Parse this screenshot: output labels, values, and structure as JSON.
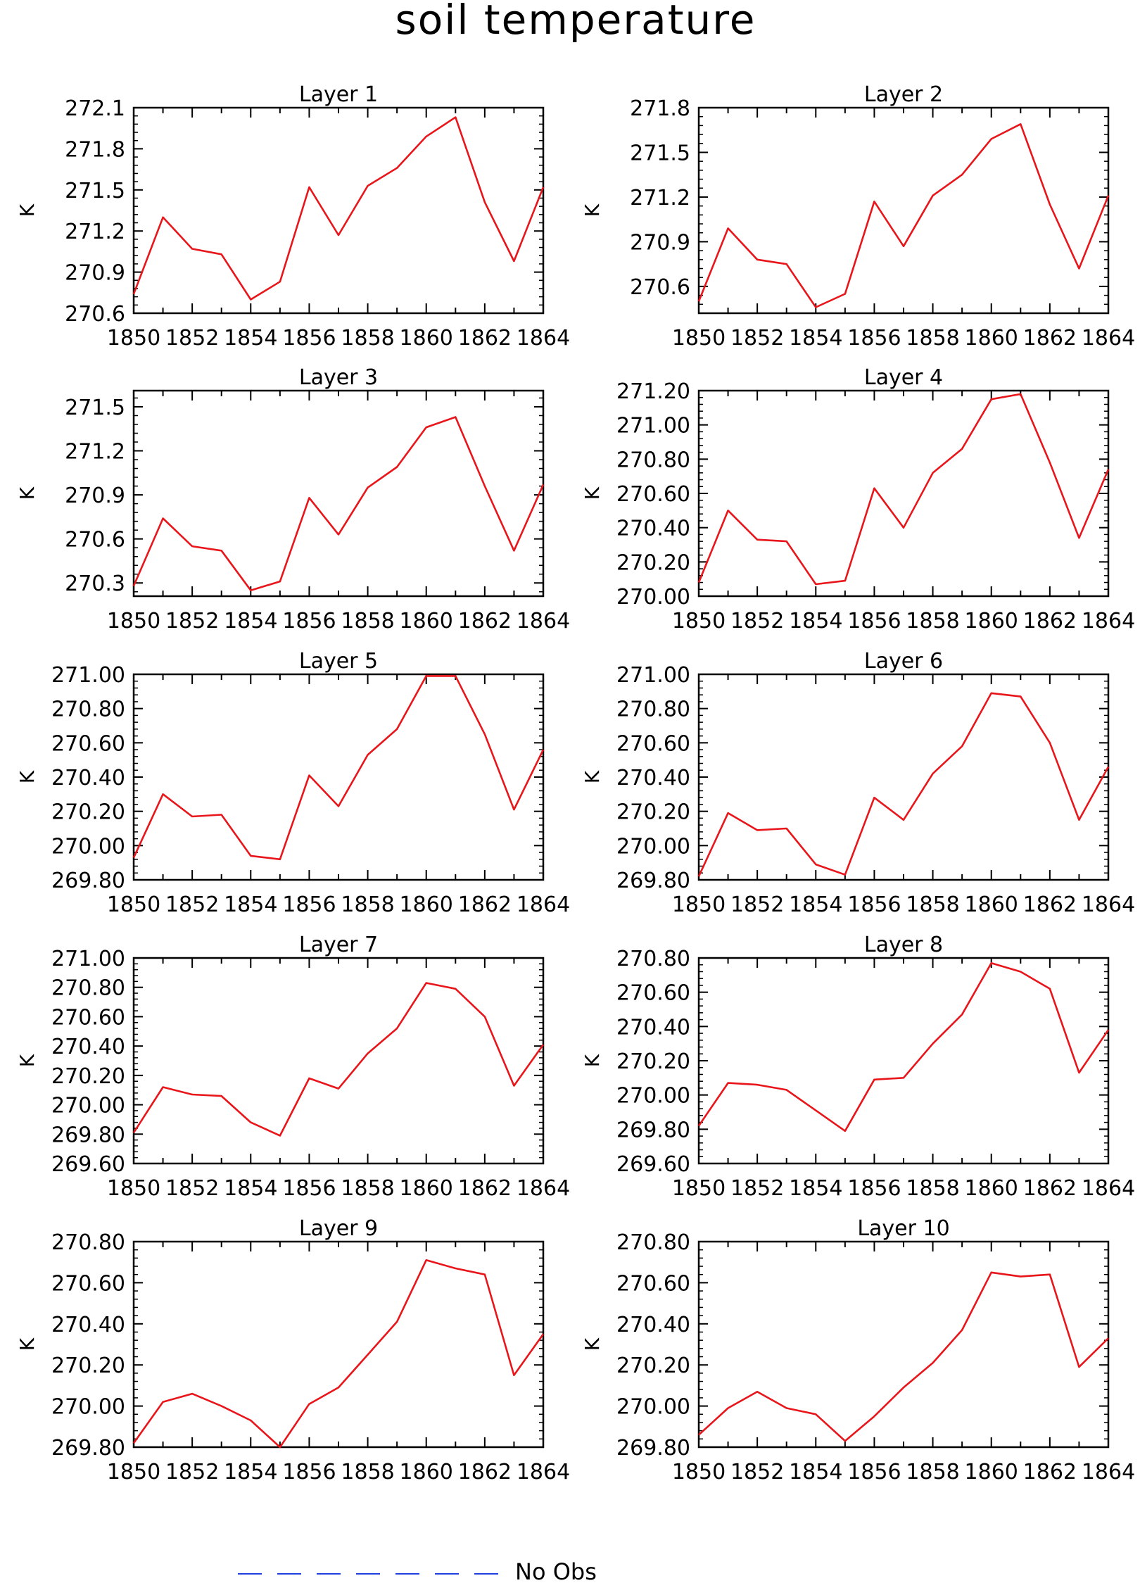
{
  "figure_title": "soil temperature",
  "legend": {
    "label": "No Obs",
    "line_color": "#1f3fe0"
  },
  "series_color": "#e8161b",
  "chart_data": [
    {
      "type": "line",
      "title": "Layer 1",
      "ylabel": "K",
      "xlabel": "",
      "x": [
        1850,
        1851,
        1852,
        1853,
        1854,
        1855,
        1856,
        1857,
        1858,
        1859,
        1860,
        1861,
        1862,
        1863,
        1864
      ],
      "xticks": [
        1850,
        1852,
        1854,
        1856,
        1858,
        1860,
        1862,
        1864
      ],
      "xlim": [
        1850,
        1864
      ],
      "ylim": [
        270.6,
        272.1
      ],
      "yticks": [
        "270.6",
        "270.9",
        "271.2",
        "271.5",
        "271.8",
        "272.1"
      ],
      "values": [
        270.74,
        271.3,
        271.07,
        271.03,
        270.7,
        270.83,
        271.52,
        271.17,
        271.53,
        271.66,
        271.89,
        272.03,
        271.41,
        270.98,
        271.52
      ]
    },
    {
      "type": "line",
      "title": "Layer 2",
      "ylabel": "K",
      "xlabel": "",
      "x": [
        1850,
        1851,
        1852,
        1853,
        1854,
        1855,
        1856,
        1857,
        1858,
        1859,
        1860,
        1861,
        1862,
        1863,
        1864
      ],
      "xticks": [
        1850,
        1852,
        1854,
        1856,
        1858,
        1860,
        1862,
        1864
      ],
      "xlim": [
        1850,
        1864
      ],
      "ylim": [
        270.42,
        271.8
      ],
      "yticks": [
        "270.6",
        "270.9",
        "271.2",
        "271.5",
        "271.8"
      ],
      "values": [
        270.5,
        270.99,
        270.78,
        270.75,
        270.46,
        270.55,
        271.17,
        270.87,
        271.21,
        271.35,
        271.59,
        271.69,
        271.15,
        270.72,
        271.21
      ]
    },
    {
      "type": "line",
      "title": "Layer 3",
      "ylabel": "K",
      "xlabel": "",
      "x": [
        1850,
        1851,
        1852,
        1853,
        1854,
        1855,
        1856,
        1857,
        1858,
        1859,
        1860,
        1861,
        1862,
        1863,
        1864
      ],
      "xticks": [
        1850,
        1852,
        1854,
        1856,
        1858,
        1860,
        1862,
        1864
      ],
      "xlim": [
        1850,
        1864
      ],
      "ylim": [
        270.21,
        271.61
      ],
      "yticks": [
        "270.3",
        "270.6",
        "270.9",
        "271.2",
        "271.5"
      ],
      "values": [
        270.28,
        270.74,
        270.55,
        270.52,
        270.25,
        270.31,
        270.88,
        270.63,
        270.95,
        271.09,
        271.36,
        271.43,
        270.96,
        270.52,
        270.97
      ]
    },
    {
      "type": "line",
      "title": "Layer 4",
      "ylabel": "K",
      "xlabel": "",
      "x": [
        1850,
        1851,
        1852,
        1853,
        1854,
        1855,
        1856,
        1857,
        1858,
        1859,
        1860,
        1861,
        1862,
        1863,
        1864
      ],
      "xticks": [
        1850,
        1852,
        1854,
        1856,
        1858,
        1860,
        1862,
        1864
      ],
      "xlim": [
        1850,
        1864
      ],
      "ylim": [
        270.0,
        271.2
      ],
      "yticks": [
        "270.00",
        "270.20",
        "270.40",
        "270.60",
        "270.80",
        "271.00",
        "271.20"
      ],
      "values": [
        270.08,
        270.5,
        270.33,
        270.32,
        270.07,
        270.09,
        270.63,
        270.4,
        270.72,
        270.86,
        271.15,
        271.18,
        270.78,
        270.34,
        270.74
      ]
    },
    {
      "type": "line",
      "title": "Layer 5",
      "ylabel": "K",
      "xlabel": "",
      "x": [
        1850,
        1851,
        1852,
        1853,
        1854,
        1855,
        1856,
        1857,
        1858,
        1859,
        1860,
        1861,
        1862,
        1863,
        1864
      ],
      "xticks": [
        1850,
        1852,
        1854,
        1856,
        1858,
        1860,
        1862,
        1864
      ],
      "xlim": [
        1850,
        1864
      ],
      "ylim": [
        269.8,
        271.0
      ],
      "yticks": [
        "269.80",
        "270.00",
        "270.20",
        "270.40",
        "270.60",
        "270.80",
        "271.00"
      ],
      "values": [
        269.93,
        270.3,
        270.17,
        270.18,
        269.94,
        269.92,
        270.41,
        270.23,
        270.53,
        270.68,
        270.99,
        270.99,
        270.65,
        270.21,
        270.56
      ]
    },
    {
      "type": "line",
      "title": "Layer 6",
      "ylabel": "K",
      "xlabel": "",
      "x": [
        1850,
        1851,
        1852,
        1853,
        1854,
        1855,
        1856,
        1857,
        1858,
        1859,
        1860,
        1861,
        1862,
        1863,
        1864
      ],
      "xticks": [
        1850,
        1852,
        1854,
        1856,
        1858,
        1860,
        1862,
        1864
      ],
      "xlim": [
        1850,
        1864
      ],
      "ylim": [
        269.8,
        271.0
      ],
      "yticks": [
        "269.80",
        "270.00",
        "270.20",
        "270.40",
        "270.60",
        "270.80",
        "271.00"
      ],
      "values": [
        269.82,
        270.19,
        270.09,
        270.1,
        269.89,
        269.83,
        270.28,
        270.15,
        270.42,
        270.58,
        270.89,
        270.87,
        270.6,
        270.15,
        270.46
      ]
    },
    {
      "type": "line",
      "title": "Layer 7",
      "ylabel": "K",
      "xlabel": "",
      "x": [
        1850,
        1851,
        1852,
        1853,
        1854,
        1855,
        1856,
        1857,
        1858,
        1859,
        1860,
        1861,
        1862,
        1863,
        1864
      ],
      "xticks": [
        1850,
        1852,
        1854,
        1856,
        1858,
        1860,
        1862,
        1864
      ],
      "xlim": [
        1850,
        1864
      ],
      "ylim": [
        269.6,
        271.0
      ],
      "yticks": [
        "269.60",
        "269.80",
        "270.00",
        "270.20",
        "270.40",
        "270.60",
        "270.80",
        "271.00"
      ],
      "values": [
        269.81,
        270.12,
        270.07,
        270.06,
        269.88,
        269.79,
        270.18,
        270.11,
        270.35,
        270.52,
        270.83,
        270.79,
        270.6,
        270.13,
        270.41
      ]
    },
    {
      "type": "line",
      "title": "Layer 8",
      "ylabel": "K",
      "xlabel": "",
      "x": [
        1850,
        1851,
        1852,
        1853,
        1854,
        1855,
        1856,
        1857,
        1858,
        1859,
        1860,
        1861,
        1862,
        1863,
        1864
      ],
      "xticks": [
        1850,
        1852,
        1854,
        1856,
        1858,
        1860,
        1862,
        1864
      ],
      "xlim": [
        1850,
        1864
      ],
      "ylim": [
        269.6,
        270.8
      ],
      "yticks": [
        "269.60",
        "269.80",
        "270.00",
        "270.20",
        "270.40",
        "270.60",
        "270.80"
      ],
      "values": [
        269.82,
        270.07,
        270.06,
        270.03,
        269.91,
        269.79,
        270.09,
        270.1,
        270.3,
        270.47,
        270.77,
        270.72,
        270.62,
        270.13,
        270.38
      ]
    },
    {
      "type": "line",
      "title": "Layer 9",
      "ylabel": "K",
      "xlabel": "",
      "x": [
        1850,
        1851,
        1852,
        1853,
        1854,
        1855,
        1856,
        1857,
        1858,
        1859,
        1860,
        1861,
        1862,
        1863,
        1864
      ],
      "xticks": [
        1850,
        1852,
        1854,
        1856,
        1858,
        1860,
        1862,
        1864
      ],
      "xlim": [
        1850,
        1864
      ],
      "ylim": [
        269.8,
        270.8
      ],
      "yticks": [
        "269.80",
        "270.00",
        "270.20",
        "270.40",
        "270.60",
        "270.80"
      ],
      "values": [
        269.82,
        270.02,
        270.06,
        270.0,
        269.93,
        269.8,
        270.01,
        270.09,
        270.25,
        270.41,
        270.71,
        270.67,
        270.64,
        270.15,
        270.35
      ]
    },
    {
      "type": "line",
      "title": "Layer 10",
      "ylabel": "K",
      "xlabel": "",
      "x": [
        1850,
        1851,
        1852,
        1853,
        1854,
        1855,
        1856,
        1857,
        1858,
        1859,
        1860,
        1861,
        1862,
        1863,
        1864
      ],
      "xticks": [
        1850,
        1852,
        1854,
        1856,
        1858,
        1860,
        1862,
        1864
      ],
      "xlim": [
        1850,
        1864
      ],
      "ylim": [
        269.8,
        270.8
      ],
      "yticks": [
        "269.80",
        "270.00",
        "270.20",
        "270.40",
        "270.60",
        "270.80"
      ],
      "values": [
        269.86,
        269.99,
        270.07,
        269.99,
        269.96,
        269.83,
        269.95,
        270.09,
        270.21,
        270.37,
        270.65,
        270.63,
        270.64,
        270.19,
        270.33
      ]
    }
  ]
}
